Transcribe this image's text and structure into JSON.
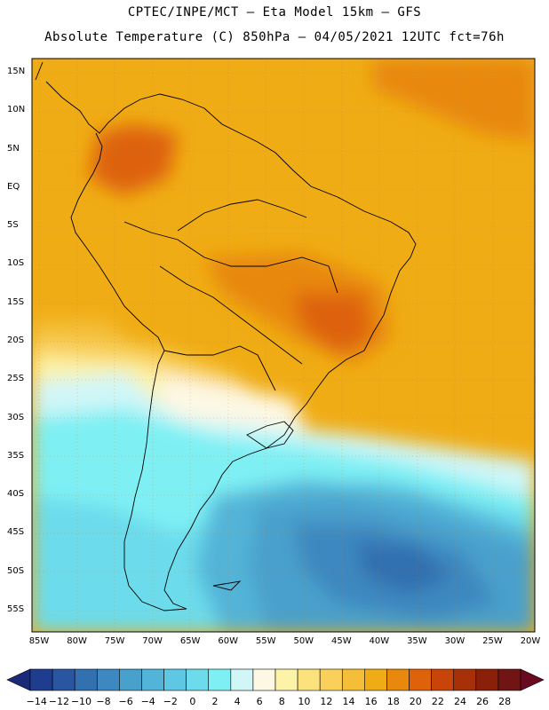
{
  "header": {
    "line1": "CPTEC/INPE/MCT –  Eta Model 15km – GFS",
    "line2": "Absolute Temperature (C) 850hPa – 04/05/2021 12UTC fct=76h"
  },
  "axes": {
    "lat_labels": [
      "15N",
      "10N",
      "5N",
      "EQ",
      "5S",
      "10S",
      "15S",
      "20S",
      "25S",
      "30S",
      "35S",
      "40S",
      "45S",
      "50S",
      "55S"
    ],
    "lon_labels": [
      "85W",
      "80W",
      "75W",
      "70W",
      "65W",
      "60W",
      "55W",
      "50W",
      "45W",
      "40W",
      "35W",
      "30W",
      "25W",
      "20W"
    ]
  },
  "colorbar": {
    "labels": [
      "-14",
      "-12",
      "-10",
      "-8",
      "-6",
      "-4",
      "-2",
      "0",
      "2",
      "4",
      "6",
      "8",
      "10",
      "12",
      "14",
      "16",
      "18",
      "20",
      "22",
      "24",
      "26",
      "28"
    ],
    "colors": [
      "#1f3d8f",
      "#2a55a0",
      "#3370b0",
      "#3d88c0",
      "#48a0cc",
      "#52b4d8",
      "#5ec8e4",
      "#6cdcec",
      "#7ef0f4",
      "#d0f6f8",
      "#fdf8e4",
      "#fcf2a8",
      "#fbe27c",
      "#f8d05a",
      "#f4be38",
      "#f0ac14",
      "#e8880c",
      "#de620a",
      "#c84408",
      "#a83008",
      "#8a200a",
      "#701414"
    ]
  }
}
